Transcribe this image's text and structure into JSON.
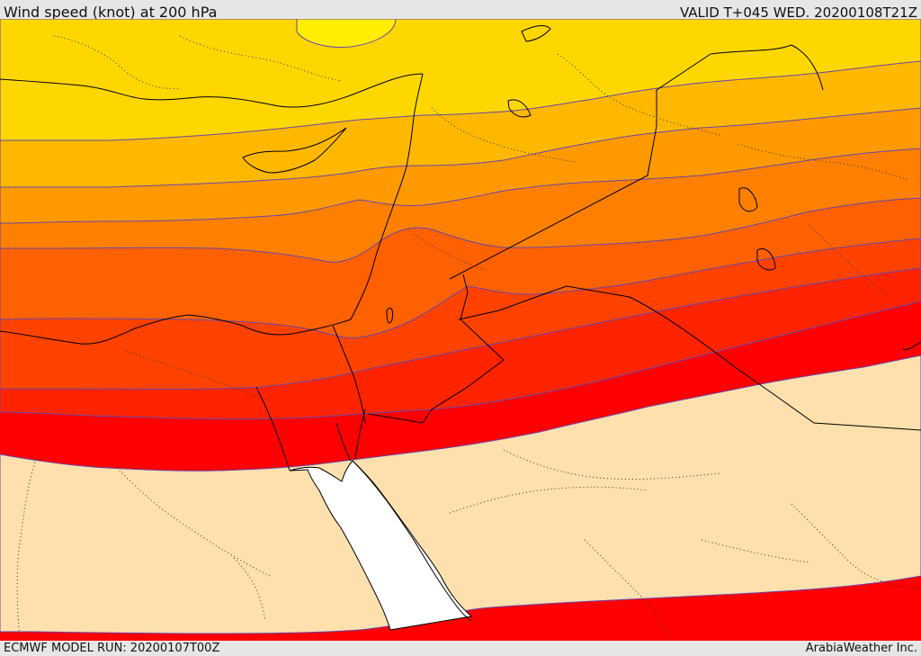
{
  "header": {
    "title": "Wind speed (knot) at 200 hPa",
    "valid_time": "VALID T+045 WED. 20200108T21Z"
  },
  "footer": {
    "model_run": "ECMWF MODEL RUN: 20200107T00Z",
    "credit": "ArabiaWeather Inc."
  },
  "map": {
    "variable": "wind speed",
    "units": "knot",
    "level": "200 hPa",
    "colors": {
      "band_1": "#ffee00",
      "band_2": "#ffd700",
      "band_3": "#ffb800",
      "band_4": "#ff9900",
      "band_5": "#ff7f00",
      "band_6": "#ff6000",
      "band_7": "#ff4200",
      "band_8": "#ff2300",
      "band_9": "#ff0000",
      "low_wind": "#fde0ad",
      "sea": "#ffffff",
      "contour": "#6a46a8",
      "coastline": "#000000"
    }
  }
}
